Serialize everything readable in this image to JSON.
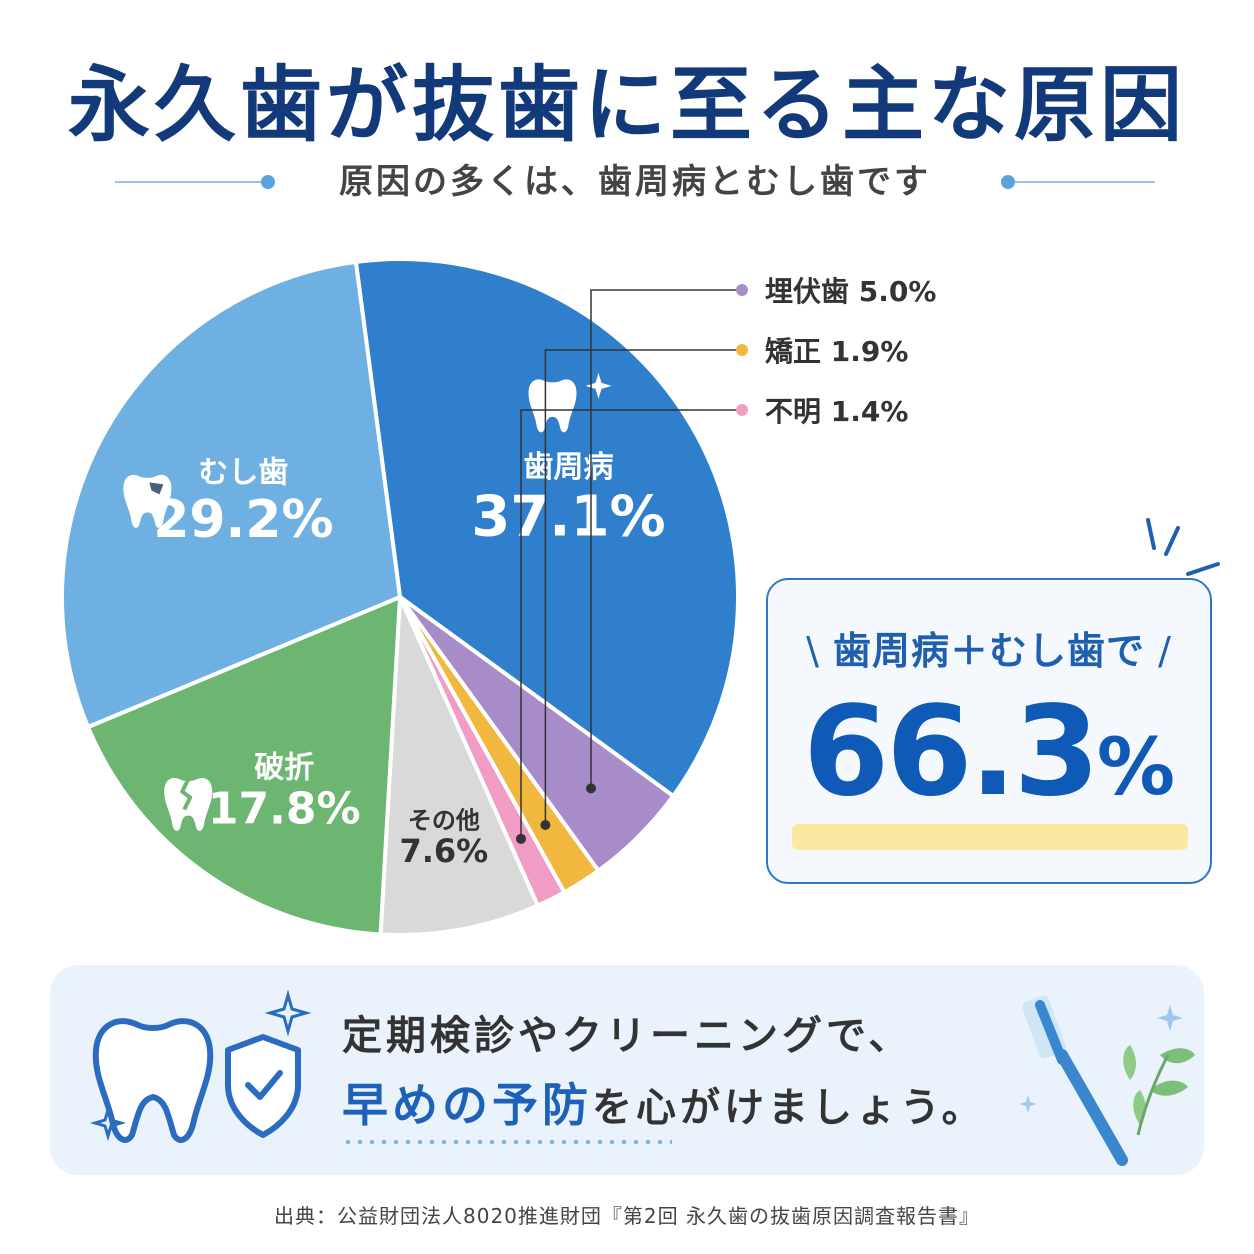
{
  "title": "永久歯が抜歯に至る主な原因",
  "subtitle": "原因の多くは、歯周病とむし歯です",
  "chart_data": {
    "type": "pie",
    "title": "永久歯が抜歯に至る主な原因",
    "slices": [
      {
        "name": "歯周病",
        "value": 37.1,
        "label": "37.1%",
        "color": "#2f7fcc",
        "placement": "inside",
        "icon": "tooth-sparkle-icon"
      },
      {
        "name": "埋伏歯",
        "value": 5.0,
        "label": "5.0%",
        "color": "#a88bc9",
        "placement": "callout"
      },
      {
        "name": "矯正",
        "value": 1.9,
        "label": "1.9%",
        "color": "#f2b73f",
        "placement": "callout"
      },
      {
        "name": "不明",
        "value": 1.4,
        "label": "1.4%",
        "color": "#f19cc4",
        "placement": "callout"
      },
      {
        "name": "その他",
        "value": 7.6,
        "label": "7.6%",
        "color": "#d9d9d9",
        "placement": "inside"
      },
      {
        "name": "破折",
        "value": 17.8,
        "label": "17.8%",
        "color": "#6db672",
        "placement": "inside",
        "icon": "cracked-tooth-icon"
      },
      {
        "name": "むし歯",
        "value": 29.2,
        "label": "29.2%",
        "color": "#6fb0e2",
        "placement": "inside",
        "icon": "decayed-tooth-icon"
      }
    ],
    "legend": "callouts-right"
  },
  "highlight": {
    "label": "歯周病＋むし歯で",
    "value": "66.3",
    "unit": "%"
  },
  "bottom": {
    "line1": "定期検診やクリーニングで、",
    "line2_emphasis": "早めの予防",
    "line2_rest": "を心がけましょう。"
  },
  "source": "出典：公益財団法人8020推進財団『第2回 永久歯の抜歯原因調査報告書』"
}
